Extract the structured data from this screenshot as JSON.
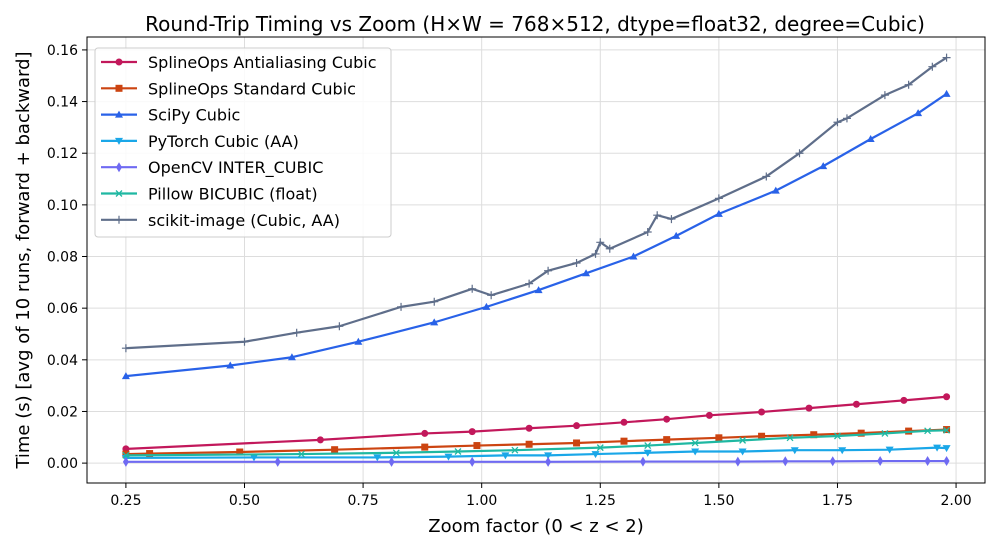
{
  "chart_data": {
    "type": "line",
    "title": "Round-Trip Timing vs Zoom  (H×W = 768×512, dtype=float32, degree=Cubic)",
    "xlabel": "Zoom factor (0 < z < 2)",
    "ylabel": "Time (s)  [avg of 10 runs, forward + backward]",
    "xlim": [
      0.168,
      2.061
    ],
    "ylim": [
      -0.0077,
      0.165
    ],
    "xticks": [
      "0.25",
      "0.50",
      "0.75",
      "1.00",
      "1.25",
      "1.50",
      "1.75",
      "2.00"
    ],
    "xtick_values": [
      0.25,
      0.5,
      0.75,
      1.0,
      1.25,
      1.5,
      1.75,
      2.0
    ],
    "yticks": [
      "0.00",
      "0.02",
      "0.04",
      "0.06",
      "0.08",
      "0.10",
      "0.12",
      "0.14",
      "0.16"
    ],
    "ytick_values": [
      0,
      0.02,
      0.04,
      0.06,
      0.08,
      0.1,
      0.12,
      0.14,
      0.16
    ],
    "grid": true,
    "legend_placement": "top-left",
    "series": [
      {
        "name": "SplineOps Antialiasing Cubic",
        "color": "#c2185b",
        "marker": "circle",
        "x": [
          0.25,
          0.66,
          0.88,
          0.98,
          1.1,
          1.2,
          1.3,
          1.39,
          1.48,
          1.59,
          1.69,
          1.79,
          1.89,
          1.98
        ],
        "y": [
          0.0055,
          0.009,
          0.0115,
          0.0122,
          0.0135,
          0.0145,
          0.0158,
          0.017,
          0.0185,
          0.0198,
          0.0213,
          0.0228,
          0.0243,
          0.0257
        ]
      },
      {
        "name": "SplineOps Standard Cubic",
        "color": "#cc4411",
        "marker": "square",
        "x": [
          0.25,
          0.3,
          0.49,
          0.69,
          0.88,
          0.99,
          1.1,
          1.2,
          1.3,
          1.39,
          1.5,
          1.59,
          1.7,
          1.8,
          1.9,
          1.98
        ],
        "y": [
          0.0035,
          0.0037,
          0.0043,
          0.0052,
          0.0062,
          0.0068,
          0.0073,
          0.0078,
          0.0085,
          0.0091,
          0.0098,
          0.0104,
          0.011,
          0.0116,
          0.0124,
          0.013
        ]
      },
      {
        "name": "SciPy Cubic",
        "color": "#2962e8",
        "marker": "triangle-up",
        "x": [
          0.25,
          0.47,
          0.6,
          0.74,
          0.9,
          1.01,
          1.12,
          1.22,
          1.32,
          1.41,
          1.5,
          1.62,
          1.72,
          1.82,
          1.92,
          1.98
        ],
        "y": [
          0.0337,
          0.0378,
          0.041,
          0.047,
          0.0545,
          0.0605,
          0.067,
          0.0735,
          0.08,
          0.088,
          0.0965,
          0.1055,
          0.115,
          0.1255,
          0.1355,
          0.143
        ]
      },
      {
        "name": "PyTorch Cubic (AA)",
        "color": "#1aa7e8",
        "marker": "triangle-down",
        "x": [
          0.25,
          0.52,
          0.78,
          0.93,
          1.05,
          1.14,
          1.24,
          1.35,
          1.45,
          1.55,
          1.66,
          1.76,
          1.86,
          1.96,
          1.98
        ],
        "y": [
          0.002,
          0.0022,
          0.0022,
          0.0025,
          0.003,
          0.003,
          0.0035,
          0.004,
          0.0045,
          0.0045,
          0.005,
          0.005,
          0.0052,
          0.006,
          0.0058
        ]
      },
      {
        "name": "OpenCV INTER_CUBIC",
        "color": "#6f6af2",
        "marker": "diamond",
        "x": [
          0.25,
          0.57,
          0.81,
          0.98,
          1.14,
          1.34,
          1.54,
          1.64,
          1.74,
          1.84,
          1.94,
          1.98
        ],
        "y": [
          0.0005,
          0.0005,
          0.0005,
          0.0005,
          0.0005,
          0.0006,
          0.0006,
          0.0007,
          0.0007,
          0.0008,
          0.0008,
          0.0008
        ]
      },
      {
        "name": "Pillow BICUBIC (float)",
        "color": "#1fb8a2",
        "marker": "x",
        "x": [
          0.25,
          0.62,
          0.82,
          0.95,
          1.07,
          1.25,
          1.35,
          1.45,
          1.55,
          1.65,
          1.75,
          1.85,
          1.94,
          1.98
        ],
        "y": [
          0.003,
          0.0035,
          0.004,
          0.0045,
          0.005,
          0.006,
          0.0068,
          0.0078,
          0.0088,
          0.0098,
          0.0105,
          0.0115,
          0.0125,
          0.0127
        ]
      },
      {
        "name": "scikit-image (Cubic, AA)",
        "color": "#5f6e8a",
        "marker": "plus",
        "x": [
          0.25,
          0.5,
          0.61,
          0.7,
          0.83,
          0.9,
          0.98,
          1.02,
          1.1,
          1.14,
          1.2,
          1.24,
          1.25,
          1.27,
          1.35,
          1.37,
          1.4,
          1.5,
          1.6,
          1.67,
          1.75,
          1.77,
          1.85,
          1.9,
          1.95,
          1.98
        ],
        "y": [
          0.0445,
          0.047,
          0.0505,
          0.053,
          0.0605,
          0.0625,
          0.0675,
          0.065,
          0.0695,
          0.0745,
          0.0775,
          0.081,
          0.0855,
          0.083,
          0.0895,
          0.096,
          0.0945,
          0.1025,
          0.111,
          0.12,
          0.132,
          0.1335,
          0.1425,
          0.1465,
          0.1535,
          0.157
        ]
      }
    ]
  }
}
